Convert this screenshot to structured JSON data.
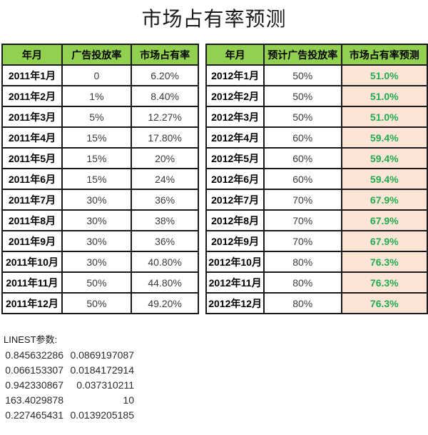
{
  "title": "市场占有率预测",
  "colors": {
    "header_bg": "#92d050",
    "forecast_cell_bg": "#fce4d6",
    "forecast_text": "#22ab50",
    "border": "#1a1a1a"
  },
  "tables": {
    "left": {
      "headers": [
        "年月",
        "广告投放率",
        "市场占有率"
      ],
      "rows": [
        [
          "2011年1月",
          "0",
          "6.20%"
        ],
        [
          "2011年2月",
          "1%",
          "8.40%"
        ],
        [
          "2011年3月",
          "5%",
          "12.27%"
        ],
        [
          "2011年4月",
          "15%",
          "17.80%"
        ],
        [
          "2011年5月",
          "15%",
          "20%"
        ],
        [
          "2011年6月",
          "15%",
          "24%"
        ],
        [
          "2011年7月",
          "30%",
          "36%"
        ],
        [
          "2011年8月",
          "30%",
          "38%"
        ],
        [
          "2011年9月",
          "30%",
          "36%"
        ],
        [
          "2011年10月",
          "30%",
          "40.80%"
        ],
        [
          "2011年11月",
          "50%",
          "44.80%"
        ],
        [
          "2011年12月",
          "50%",
          "49.20%"
        ]
      ]
    },
    "right": {
      "headers": [
        "年月",
        "预计广告投放率",
        "市场占有率预测"
      ],
      "rows": [
        [
          "2012年1月",
          "50%",
          "51.0%"
        ],
        [
          "2012年2月",
          "50%",
          "51.0%"
        ],
        [
          "2012年3月",
          "50%",
          "51.0%"
        ],
        [
          "2012年4月",
          "60%",
          "59.4%"
        ],
        [
          "2012年5月",
          "60%",
          "59.4%"
        ],
        [
          "2012年6月",
          "60%",
          "59.4%"
        ],
        [
          "2012年7月",
          "70%",
          "67.9%"
        ],
        [
          "2012年8月",
          "70%",
          "67.9%"
        ],
        [
          "2012年9月",
          "70%",
          "67.9%"
        ],
        [
          "2012年10月",
          "80%",
          "76.3%"
        ],
        [
          "2012年11月",
          "80%",
          "76.3%"
        ],
        [
          "2012年12月",
          "80%",
          "76.3%"
        ]
      ]
    }
  },
  "linest": {
    "label": "LINEST参数:",
    "rows": [
      [
        "0.845632286",
        "0.0869197087"
      ],
      [
        "0.066153307",
        "0.0184172914"
      ],
      [
        "0.942330867",
        "0.037310211"
      ],
      [
        "163.4029878",
        "10"
      ],
      [
        "0.227465431",
        "0.0139205185"
      ]
    ]
  }
}
